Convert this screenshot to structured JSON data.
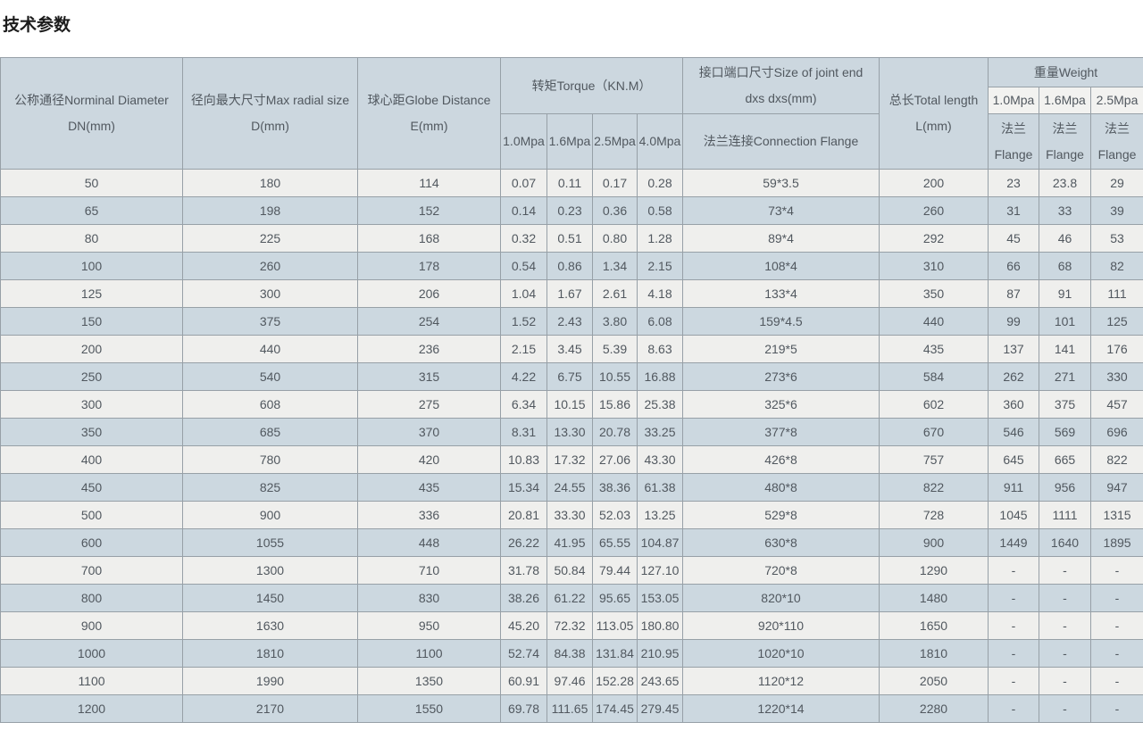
{
  "title": "技术参数",
  "colors": {
    "header_bg": "#ccd7df",
    "header_light_cell_bg": "#f2f2f0",
    "row_light_bg": "#efefed",
    "row_blue_bg": "#ccd8e0",
    "border": "#97a0a7",
    "text": "#51585f"
  },
  "table": {
    "headers": {
      "dn": "公称通径Norminal Diameter\nDN(mm)",
      "d": "径向最大尺寸Max radial size\nD(mm)",
      "e": "球心距Globe Distance\nE(mm)",
      "torque": "转矩Torque（KN.M）",
      "torque_cols": [
        "1.0Mpa",
        "1.6Mpa",
        "2.5Mpa",
        "4.0Mpa"
      ],
      "joint": "接口端口尺寸Size of joint end\ndxs dxs(mm)",
      "joint_sub": "法兰连接Connection Flange",
      "length": "总长Total length\nL(mm)",
      "weight": "重量Weight",
      "weight_cols": [
        "1.0Mpa",
        "1.6Mpa",
        "2.5Mpa"
      ],
      "weight_sub": "法兰\nFlange"
    },
    "rows": [
      [
        "50",
        "180",
        "114",
        "0.07",
        "0.11",
        "0.17",
        "0.28",
        "59*3.5",
        "200",
        "23",
        "23.8",
        "29"
      ],
      [
        "65",
        "198",
        "152",
        "0.14",
        "0.23",
        "0.36",
        "0.58",
        "73*4",
        "260",
        "31",
        "33",
        "39"
      ],
      [
        "80",
        "225",
        "168",
        "0.32",
        "0.51",
        "0.80",
        "1.28",
        "89*4",
        "292",
        "45",
        "46",
        "53"
      ],
      [
        "100",
        "260",
        "178",
        "0.54",
        "0.86",
        "1.34",
        "2.15",
        "108*4",
        "310",
        "66",
        "68",
        "82"
      ],
      [
        "125",
        "300",
        "206",
        "1.04",
        "1.67",
        "2.61",
        "4.18",
        "133*4",
        "350",
        "87",
        "91",
        "111"
      ],
      [
        "150",
        "375",
        "254",
        "1.52",
        "2.43",
        "3.80",
        "6.08",
        "159*4.5",
        "440",
        "99",
        "101",
        "125"
      ],
      [
        "200",
        "440",
        "236",
        "2.15",
        "3.45",
        "5.39",
        "8.63",
        "219*5",
        "435",
        "137",
        "141",
        "176"
      ],
      [
        "250",
        "540",
        "315",
        "4.22",
        "6.75",
        "10.55",
        "16.88",
        "273*6",
        "584",
        "262",
        "271",
        "330"
      ],
      [
        "300",
        "608",
        "275",
        "6.34",
        "10.15",
        "15.86",
        "25.38",
        "325*6",
        "602",
        "360",
        "375",
        "457"
      ],
      [
        "350",
        "685",
        "370",
        "8.31",
        "13.30",
        "20.78",
        "33.25",
        "377*8",
        "670",
        "546",
        "569",
        "696"
      ],
      [
        "400",
        "780",
        "420",
        "10.83",
        "17.32",
        "27.06",
        "43.30",
        "426*8",
        "757",
        "645",
        "665",
        "822"
      ],
      [
        "450",
        "825",
        "435",
        "15.34",
        "24.55",
        "38.36",
        "61.38",
        "480*8",
        "822",
        "911",
        "956",
        "947"
      ],
      [
        "500",
        "900",
        "336",
        "20.81",
        "33.30",
        "52.03",
        "13.25",
        "529*8",
        "728",
        "1045",
        "1111",
        "1315"
      ],
      [
        "600",
        "1055",
        "448",
        "26.22",
        "41.95",
        "65.55",
        "104.87",
        "630*8",
        "900",
        "1449",
        "1640",
        "1895"
      ],
      [
        "700",
        "1300",
        "710",
        "31.78",
        "50.84",
        "79.44",
        "127.10",
        "720*8",
        "1290",
        "-",
        "-",
        "-"
      ],
      [
        "800",
        "1450",
        "830",
        "38.26",
        "61.22",
        "95.65",
        "153.05",
        "820*10",
        "1480",
        "-",
        "-",
        "-"
      ],
      [
        "900",
        "1630",
        "950",
        "45.20",
        "72.32",
        "113.05",
        "180.80",
        "920*110",
        "1650",
        "-",
        "-",
        "-"
      ],
      [
        "1000",
        "1810",
        "1100",
        "52.74",
        "84.38",
        "131.84",
        "210.95",
        "1020*10",
        "1810",
        "-",
        "-",
        "-"
      ],
      [
        "1100",
        "1990",
        "1350",
        "60.91",
        "97.46",
        "152.28",
        "243.65",
        "1120*12",
        "2050",
        "-",
        "-",
        "-"
      ],
      [
        "1200",
        "2170",
        "1550",
        "69.78",
        "111.65",
        "174.45",
        "279.45",
        "1220*14",
        "2280",
        "-",
        "-",
        "-"
      ]
    ]
  }
}
